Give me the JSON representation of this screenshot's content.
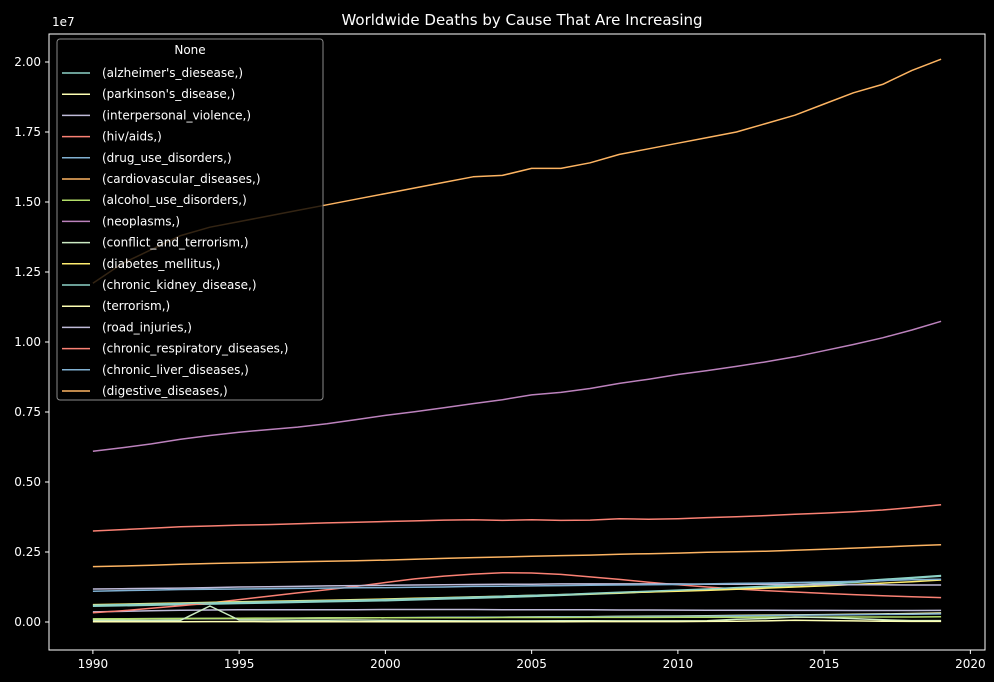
{
  "chart_data": {
    "type": "line",
    "title": "Worldwide Deaths by Cause That Are Increasing",
    "xlabel": "",
    "ylabel": "",
    "y_offset_label": "1e7",
    "legend_title": "None",
    "legend_position": "top-left",
    "grid": false,
    "xlim": [
      1988.5,
      2020.5
    ],
    "ylim": [
      -1000000,
      21000000
    ],
    "x_ticks": [
      1990,
      1995,
      2000,
      2005,
      2010,
      2015,
      2020
    ],
    "x_tick_labels": [
      "1990",
      "1995",
      "2000",
      "2005",
      "2010",
      "2015",
      "2020"
    ],
    "y_ticks": [
      0,
      2500000,
      5000000,
      7500000,
      10000000,
      12500000,
      15000000,
      17500000,
      20000000
    ],
    "y_tick_labels": [
      "0.00",
      "0.25",
      "0.50",
      "0.75",
      "1.00",
      "1.25",
      "1.50",
      "1.75",
      "2.00"
    ],
    "x": [
      1990,
      1991,
      1992,
      1993,
      1994,
      1995,
      1996,
      1997,
      1998,
      1999,
      2000,
      2001,
      2002,
      2003,
      2004,
      2005,
      2006,
      2007,
      2008,
      2009,
      2010,
      2011,
      2012,
      2013,
      2014,
      2015,
      2016,
      2017,
      2018,
      2019
    ],
    "series": [
      {
        "name": "(alzheimer's_diesease,)",
        "color": "#8dd3c7",
        "values": [
          560000,
          580000,
          600000,
          620000,
          640000,
          660000,
          680000,
          700000,
          720000,
          740000,
          760000,
          790000,
          820000,
          850000,
          880000,
          910000,
          950000,
          990000,
          1030000,
          1070000,
          1110000,
          1150000,
          1200000,
          1250000,
          1300000,
          1350000,
          1410000,
          1480000,
          1560000,
          1640000
        ]
      },
      {
        "name": "(parkinson's_disease,)",
        "color": "#feffb3",
        "values": [
          100000,
          105000,
          110000,
          115000,
          120000,
          125000,
          130000,
          135000,
          140000,
          145000,
          150000,
          155000,
          160000,
          165000,
          170000,
          180000,
          185000,
          190000,
          200000,
          210000,
          215000,
          225000,
          235000,
          245000,
          255000,
          265000,
          280000,
          290000,
          305000,
          320000
        ]
      },
      {
        "name": "(interpersonal_violence,)",
        "color": "#bfbbd9",
        "values": [
          360000,
          380000,
          400000,
          420000,
          430000,
          440000,
          440000,
          440000,
          440000,
          440000,
          445000,
          445000,
          445000,
          445000,
          440000,
          440000,
          435000,
          435000,
          430000,
          430000,
          425000,
          420000,
          420000,
          420000,
          415000,
          415000,
          410000,
          410000,
          410000,
          415000
        ]
      },
      {
        "name": "(hiv/aids,)",
        "color": "#fa8174",
        "values": [
          330000,
          400000,
          490000,
          580000,
          680000,
          800000,
          920000,
          1040000,
          1150000,
          1270000,
          1410000,
          1540000,
          1640000,
          1710000,
          1760000,
          1750000,
          1700000,
          1610000,
          1520000,
          1420000,
          1330000,
          1250000,
          1180000,
          1120000,
          1070000,
          1020000,
          980000,
          940000,
          900000,
          870000
        ]
      },
      {
        "name": "(drug_use_disorders,)",
        "color": "#81b1d2",
        "values": [
          110000,
          115000,
          120000,
          125000,
          125000,
          130000,
          135000,
          140000,
          145000,
          150000,
          155000,
          160000,
          165000,
          170000,
          175000,
          180000,
          185000,
          190000,
          195000,
          200000,
          205000,
          210000,
          220000,
          230000,
          240000,
          250000,
          260000,
          270000,
          280000,
          290000
        ]
      },
      {
        "name": "(cardiovascular_diseases,)",
        "color": "#fdb462",
        "values": [
          12100000,
          12800000,
          13300000,
          13800000,
          14100000,
          14300000,
          14500000,
          14700000,
          14900000,
          15100000,
          15300000,
          15500000,
          15700000,
          15900000,
          15950000,
          16200000,
          16200000,
          16400000,
          16700000,
          16900000,
          17100000,
          17300000,
          17500000,
          17800000,
          18100000,
          18500000,
          18900000,
          19200000,
          19700000,
          20100000
        ]
      },
      {
        "name": "(alcohol_use_disorders,)",
        "color": "#b3de69",
        "values": [
          110000,
          115000,
          120000,
          125000,
          130000,
          135000,
          140000,
          140000,
          145000,
          145000,
          150000,
          150000,
          155000,
          155000,
          160000,
          160000,
          160000,
          165000,
          165000,
          165000,
          170000,
          170000,
          170000,
          175000,
          175000,
          175000,
          180000,
          180000,
          180000,
          185000
        ]
      },
      {
        "name": "(neoplasms,)",
        "color": "#bc82bd",
        "values": [
          6100000,
          6220000,
          6360000,
          6530000,
          6660000,
          6780000,
          6870000,
          6960000,
          7080000,
          7230000,
          7380000,
          7510000,
          7650000,
          7800000,
          7940000,
          8110000,
          8200000,
          8340000,
          8520000,
          8670000,
          8840000,
          8980000,
          9130000,
          9290000,
          9470000,
          9690000,
          9910000,
          10150000,
          10430000,
          10740000
        ]
      },
      {
        "name": "(conflict_and_terrorism,)",
        "color": "#ccebc4",
        "values": [
          50000,
          60000,
          55000,
          60000,
          570000,
          70000,
          70000,
          65000,
          60000,
          70000,
          60000,
          50000,
          45000,
          40000,
          40000,
          40000,
          45000,
          45000,
          40000,
          40000,
          40000,
          45000,
          100000,
          120000,
          180000,
          160000,
          120000,
          80000,
          50000,
          50000
        ]
      },
      {
        "name": "(diabetes_mellitus,)",
        "color": "#ffed6f",
        "values": [
          620000,
          640000,
          660000,
          680000,
          700000,
          720000,
          740000,
          760000,
          780000,
          800000,
          820000,
          845000,
          870000,
          895000,
          920000,
          950000,
          980000,
          1010000,
          1040000,
          1070000,
          1100000,
          1130000,
          1170000,
          1210000,
          1250000,
          1290000,
          1340000,
          1390000,
          1440000,
          1500000
        ]
      },
      {
        "name": "(chronic_kidney_disease,)",
        "color": "#8dd3c7",
        "values": [
          600000,
          620000,
          640000,
          660000,
          680000,
          700000,
          720000,
          740000,
          760000,
          780000,
          800000,
          830000,
          860000,
          890000,
          920000,
          950000,
          980000,
          1020000,
          1060000,
          1100000,
          1140000,
          1180000,
          1230000,
          1280000,
          1330000,
          1390000,
          1450000,
          1520000,
          1590000,
          1660000
        ]
      },
      {
        "name": "(terrorism,)",
        "color": "#feffb3",
        "values": [
          10000,
          12000,
          12000,
          12000,
          15000,
          15000,
          12000,
          12000,
          10000,
          10000,
          10000,
          12000,
          12000,
          12000,
          12000,
          12000,
          12000,
          15000,
          15000,
          15000,
          15000,
          20000,
          30000,
          40000,
          60000,
          50000,
          40000,
          30000,
          20000,
          20000
        ]
      },
      {
        "name": "(road_injuries,)",
        "color": "#bfbbd9",
        "values": [
          1180000,
          1190000,
          1200000,
          1210000,
          1230000,
          1250000,
          1260000,
          1270000,
          1290000,
          1300000,
          1310000,
          1320000,
          1330000,
          1340000,
          1350000,
          1350000,
          1360000,
          1360000,
          1360000,
          1360000,
          1360000,
          1350000,
          1350000,
          1350000,
          1340000,
          1340000,
          1330000,
          1330000,
          1320000,
          1320000
        ]
      },
      {
        "name": "(chronic_respiratory_diseases,)",
        "color": "#fa8174",
        "values": [
          3250000,
          3300000,
          3350000,
          3400000,
          3430000,
          3460000,
          3480000,
          3510000,
          3540000,
          3560000,
          3590000,
          3610000,
          3640000,
          3650000,
          3630000,
          3650000,
          3630000,
          3640000,
          3690000,
          3670000,
          3690000,
          3730000,
          3760000,
          3800000,
          3850000,
          3890000,
          3940000,
          4000000,
          4090000,
          4190000
        ]
      },
      {
        "name": "(chronic_liver_diseases,)",
        "color": "#81b1d2",
        "values": [
          1100000,
          1120000,
          1140000,
          1160000,
          1170000,
          1180000,
          1190000,
          1200000,
          1210000,
          1220000,
          1230000,
          1240000,
          1250000,
          1270000,
          1280000,
          1290000,
          1300000,
          1310000,
          1320000,
          1330000,
          1340000,
          1360000,
          1380000,
          1390000,
          1410000,
          1430000,
          1450000,
          1480000,
          1510000,
          1530000
        ]
      },
      {
        "name": "(digestive_diseases,)",
        "color": "#fdb462",
        "values": [
          1980000,
          2000000,
          2030000,
          2060000,
          2090000,
          2110000,
          2130000,
          2150000,
          2170000,
          2190000,
          2210000,
          2240000,
          2270000,
          2300000,
          2320000,
          2350000,
          2370000,
          2390000,
          2420000,
          2440000,
          2460000,
          2490000,
          2510000,
          2530000,
          2560000,
          2600000,
          2640000,
          2680000,
          2720000,
          2760000
        ]
      }
    ]
  }
}
